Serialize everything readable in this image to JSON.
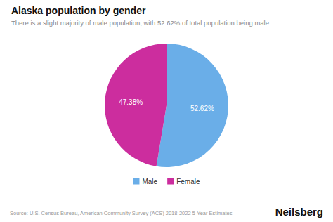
{
  "chart_data": {
    "type": "pie",
    "title": "Alaska population by gender",
    "subtitle": "There is a slight majority of male population, with 52.62% of total population being male",
    "categories": [
      "Male",
      "Female"
    ],
    "values": [
      52.62,
      47.38
    ],
    "value_labels": [
      "52.62%",
      "47.38%"
    ],
    "colors": [
      "#6aaee8",
      "#cc2d9e"
    ],
    "data_labels": true,
    "legend": "bottom",
    "annotations": [
      "Source: U.S. Census Bureau, American Community Survey (ACS) 2018-2022 5-Year Estimates",
      "Neilsberg"
    ]
  }
}
